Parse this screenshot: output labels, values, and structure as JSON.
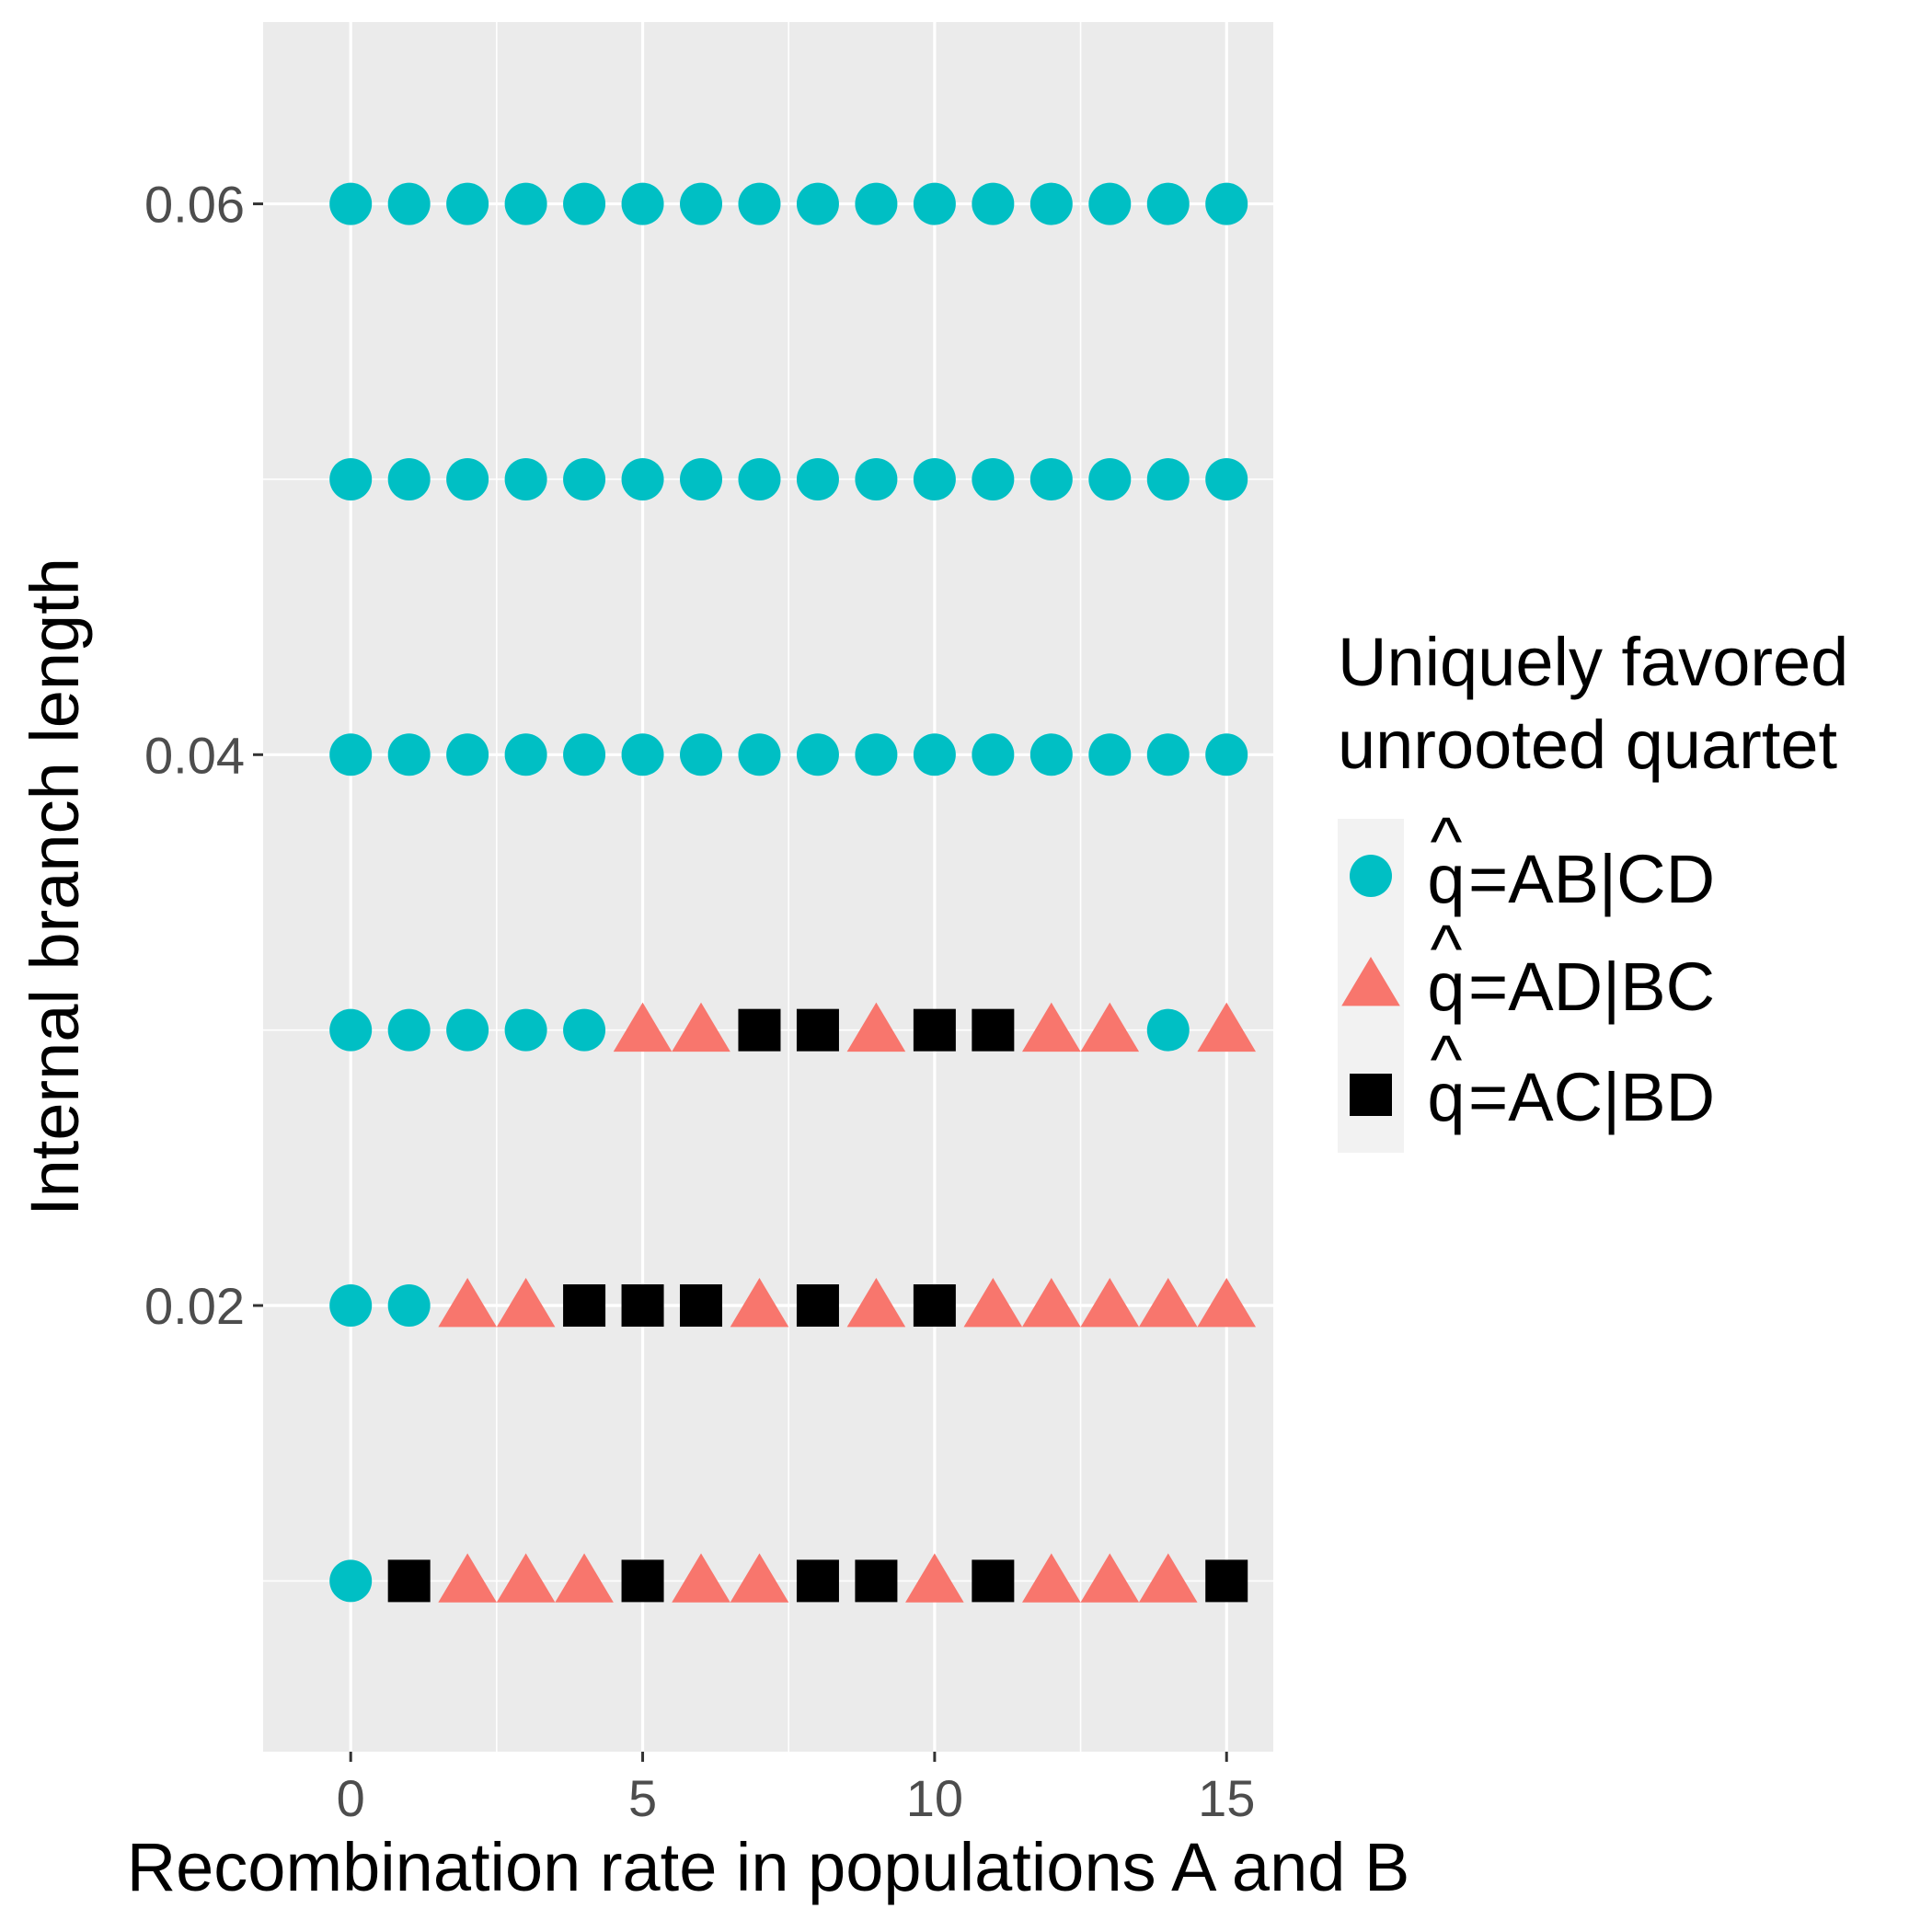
{
  "chart_data": {
    "type": "scatter",
    "title": "",
    "xlabel": "Recombination rate in populations A and B",
    "ylabel": "Internal branch length",
    "xlim": [
      -1.5,
      15.8
    ],
    "ylim": [
      0.0038,
      0.0666
    ],
    "x_ticks": [
      0,
      5,
      10,
      15
    ],
    "x_tick_labels": [
      "0",
      "5",
      "10",
      "15"
    ],
    "y_ticks": [
      0.02,
      0.04,
      0.06
    ],
    "y_tick_labels": [
      "0.02",
      "0.04",
      "0.06"
    ],
    "grid": true,
    "legend_position": "right",
    "legend": {
      "title_lines": [
        "Uniquely favored",
        "unrooted quartet"
      ],
      "entries": [
        {
          "key": "AB|CD",
          "label": "=AB|CD",
          "hat": "q",
          "shape": "circle",
          "color": "#00BFC4"
        },
        {
          "key": "AD|BC",
          "label": "=AD|BC",
          "hat": "q",
          "shape": "triangle",
          "color": "#F8766D"
        },
        {
          "key": "AC|BD",
          "label": "=AC|BD",
          "hat": "q",
          "shape": "square",
          "color": "#000000"
        }
      ]
    },
    "x": [
      0,
      1,
      2,
      3,
      4,
      5,
      6,
      7,
      8,
      9,
      10,
      11,
      12,
      13,
      14,
      15
    ],
    "rows": [
      {
        "y": 0.06,
        "classes": [
          "AB|CD",
          "AB|CD",
          "AB|CD",
          "AB|CD",
          "AB|CD",
          "AB|CD",
          "AB|CD",
          "AB|CD",
          "AB|CD",
          "AB|CD",
          "AB|CD",
          "AB|CD",
          "AB|CD",
          "AB|CD",
          "AB|CD",
          "AB|CD"
        ]
      },
      {
        "y": 0.05,
        "classes": [
          "AB|CD",
          "AB|CD",
          "AB|CD",
          "AB|CD",
          "AB|CD",
          "AB|CD",
          "AB|CD",
          "AB|CD",
          "AB|CD",
          "AB|CD",
          "AB|CD",
          "AB|CD",
          "AB|CD",
          "AB|CD",
          "AB|CD",
          "AB|CD"
        ]
      },
      {
        "y": 0.04,
        "classes": [
          "AB|CD",
          "AB|CD",
          "AB|CD",
          "AB|CD",
          "AB|CD",
          "AB|CD",
          "AB|CD",
          "AB|CD",
          "AB|CD",
          "AB|CD",
          "AB|CD",
          "AB|CD",
          "AB|CD",
          "AB|CD",
          "AB|CD",
          "AB|CD"
        ]
      },
      {
        "y": 0.03,
        "classes": [
          "AB|CD",
          "AB|CD",
          "AB|CD",
          "AB|CD",
          "AB|CD",
          "AD|BC",
          "AD|BC",
          "AC|BD",
          "AC|BD",
          "AD|BC",
          "AC|BD",
          "AC|BD",
          "AD|BC",
          "AD|BC",
          "AB|CD",
          "AD|BC"
        ]
      },
      {
        "y": 0.02,
        "classes": [
          "AB|CD",
          "AB|CD",
          "AD|BC",
          "AD|BC",
          "AC|BD",
          "AC|BD",
          "AC|BD",
          "AD|BC",
          "AC|BD",
          "AD|BC",
          "AC|BD",
          "AD|BC",
          "AD|BC",
          "AD|BC",
          "AD|BC",
          "AD|BC"
        ]
      },
      {
        "y": 0.01,
        "classes": [
          "AB|CD",
          "AC|BD",
          "AD|BC",
          "AD|BC",
          "AD|BC",
          "AC|BD",
          "AD|BC",
          "AD|BC",
          "AC|BD",
          "AC|BD",
          "AD|BC",
          "AC|BD",
          "AD|BC",
          "AD|BC",
          "AD|BC",
          "AC|BD"
        ]
      }
    ]
  }
}
